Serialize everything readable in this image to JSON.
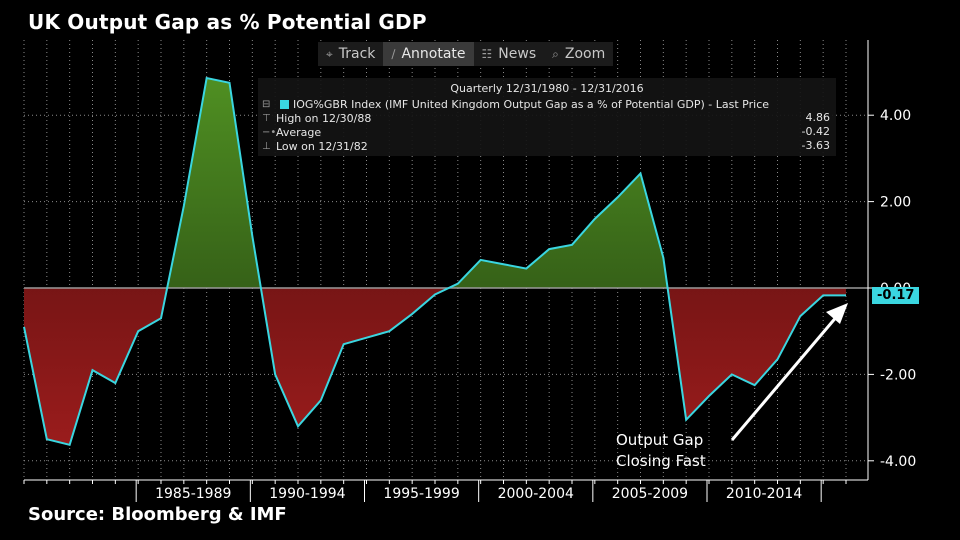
{
  "title": "UK Output Gap as % Potential GDP",
  "source": "Source: Bloomberg & IMF",
  "toolbar": {
    "items": [
      {
        "label": "Track",
        "icon": "crosshair-icon",
        "glyph": "⌖",
        "active": false
      },
      {
        "label": "Annotate",
        "icon": "pencil-icon",
        "glyph": "∕",
        "active": true
      },
      {
        "label": "News",
        "icon": "news-icon",
        "glyph": "☷",
        "active": false
      },
      {
        "label": "Zoom",
        "icon": "magnifier-icon",
        "glyph": "⌕",
        "active": false
      }
    ]
  },
  "legend": {
    "range": "Quarterly 12/31/1980 - 12/31/2016",
    "series_label": "IOG%GBR Index (IMF United Kingdom Output Gap as a % of Potential GDP) - Last Price",
    "high_label": "High on 12/30/88",
    "high_value": "4.86",
    "average_label": "Average",
    "average_value": "-0.42",
    "low_label": "Low on 12/31/82",
    "low_value": "-3.63"
  },
  "last_price_label": "-0.17",
  "annotation": {
    "line1": "Output Gap",
    "line2": "Closing Fast"
  },
  "colors": {
    "line": "#3ad6e0",
    "positive_fill_top": "#3f7a1e",
    "negative_fill_bottom": "#8c1a1a",
    "grid": "#8a8a8a"
  },
  "chart_data": {
    "type": "area",
    "x": [
      1980,
      1981,
      1982,
      1983,
      1984,
      1985,
      1986,
      1987,
      1988,
      1989,
      1990,
      1991,
      1992,
      1993,
      1994,
      1995,
      1996,
      1997,
      1998,
      1999,
      2000,
      2001,
      2002,
      2003,
      2004,
      2005,
      2006,
      2007,
      2008,
      2009,
      2010,
      2011,
      2012,
      2013,
      2014,
      2015,
      2016
    ],
    "series": [
      {
        "values": [
          -0.9,
          -3.5,
          -3.63,
          -1.9,
          -2.2,
          -1.0,
          -0.7,
          1.9,
          4.86,
          4.75,
          1.2,
          -2.0,
          -3.2,
          -2.6,
          -1.3,
          -1.15,
          -1.0,
          -0.6,
          -0.15,
          0.1,
          0.65,
          0.55,
          0.45,
          0.9,
          1.0,
          1.6,
          2.1,
          2.65,
          0.7,
          -3.05,
          -2.5,
          -2.0,
          -2.25,
          -1.65,
          -0.65,
          -0.17,
          -0.17
        ]
      }
    ],
    "ylim": [
      -4.5,
      5.5
    ],
    "yticks": [
      4.0,
      2.0,
      0.0,
      -2.0,
      -4.0
    ],
    "ytick_labels": [
      "4.00",
      "2.00",
      "0.00",
      "-2.00",
      "-4.00"
    ],
    "xtick_labels": [
      "1985-1989",
      "1990-1994",
      "1995-1999",
      "2000-2004",
      "2005-2009",
      "2010-2014"
    ],
    "xtick_spans": [
      [
        1985,
        1990
      ],
      [
        1990,
        1995
      ],
      [
        1995,
        2000
      ],
      [
        2000,
        2005
      ],
      [
        2005,
        2010
      ],
      [
        2010,
        2015
      ]
    ],
    "grid": true
  }
}
